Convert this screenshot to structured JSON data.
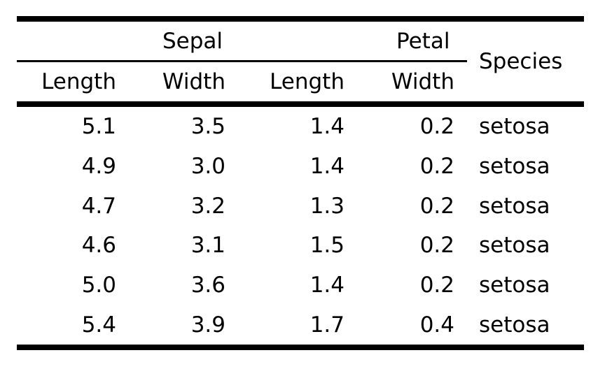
{
  "table": {
    "spanners": {
      "sepal": "Sepal",
      "petal": "Petal"
    },
    "species_header": "Species",
    "subheaders": [
      "Length",
      "Width",
      "Length",
      "Width"
    ],
    "rows": [
      {
        "sepal_length": "5.1",
        "sepal_width": "3.5",
        "petal_length": "1.4",
        "petal_width": "0.2",
        "species": "setosa"
      },
      {
        "sepal_length": "4.9",
        "sepal_width": "3.0",
        "petal_length": "1.4",
        "petal_width": "0.2",
        "species": "setosa"
      },
      {
        "sepal_length": "4.7",
        "sepal_width": "3.2",
        "petal_length": "1.3",
        "petal_width": "0.2",
        "species": "setosa"
      },
      {
        "sepal_length": "4.6",
        "sepal_width": "3.1",
        "petal_length": "1.5",
        "petal_width": "0.2",
        "species": "setosa"
      },
      {
        "sepal_length": "5.0",
        "sepal_width": "3.6",
        "petal_length": "1.4",
        "petal_width": "0.2",
        "species": "setosa"
      },
      {
        "sepal_length": "5.4",
        "sepal_width": "3.9",
        "petal_length": "1.7",
        "petal_width": "0.4",
        "species": "setosa"
      }
    ]
  },
  "colors": {
    "text": "#000000",
    "rule": "#000000",
    "background": "#ffffff"
  }
}
